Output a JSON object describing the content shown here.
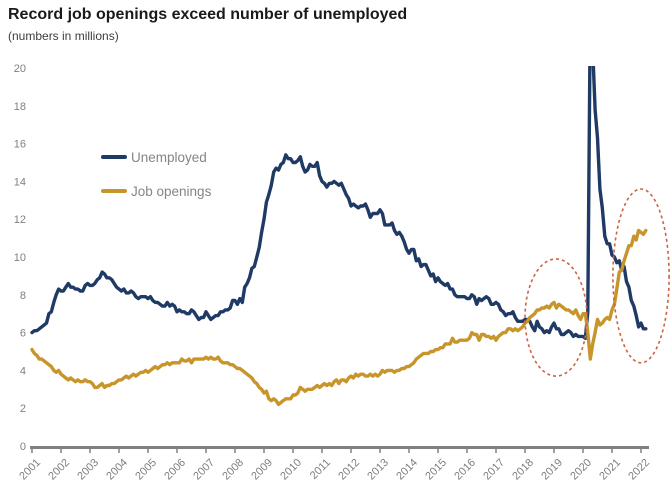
{
  "header": {
    "title": "Record job openings exceed number of unemployed",
    "subtitle": "(numbers in millions)"
  },
  "chart_data": {
    "type": "line",
    "title": "Record job openings exceed number of unemployed",
    "subtitle": "(numbers in millions)",
    "grid": false,
    "legend_position": "upper-left-inside",
    "x_start": 2001,
    "x_interval": "monthly",
    "categories": [
      "2001",
      "2002",
      "2003",
      "2004",
      "2005",
      "2006",
      "2007",
      "2008",
      "2009",
      "2010",
      "2011",
      "2012",
      "2013",
      "2014",
      "2015",
      "2016",
      "2017",
      "2018",
      "2019",
      "2020",
      "2021",
      "2022"
    ],
    "yticks": [
      0,
      2,
      4,
      6,
      8,
      10,
      12,
      14,
      16,
      18,
      20
    ],
    "ylim": [
      0,
      20
    ],
    "axis_color": "#808080",
    "tick_label_color": "#7f7f7f",
    "series": [
      {
        "id": "unemployed",
        "name": "Unemployed",
        "color": "#1f3a64",
        "values": [
          6.0,
          6.1,
          6.1,
          6.2,
          6.3,
          6.4,
          6.5,
          7.0,
          7.1,
          7.6,
          8.0,
          8.3,
          8.2,
          8.2,
          8.4,
          8.6,
          8.4,
          8.4,
          8.3,
          8.3,
          8.2,
          8.2,
          8.5,
          8.6,
          8.5,
          8.5,
          8.6,
          8.8,
          8.9,
          9.2,
          9.1,
          8.9,
          8.9,
          8.8,
          8.6,
          8.4,
          8.3,
          8.2,
          8.3,
          8.1,
          8.1,
          8.2,
          8.1,
          7.9,
          7.8,
          7.9,
          7.9,
          7.9,
          7.8,
          7.9,
          7.7,
          7.6,
          7.6,
          7.5,
          7.4,
          7.4,
          7.6,
          7.4,
          7.5,
          7.4,
          7.1,
          7.2,
          7.1,
          7.1,
          7.0,
          7.0,
          7.2,
          7.1,
          6.9,
          6.7,
          6.8,
          6.8,
          7.1,
          6.9,
          6.7,
          6.8,
          6.9,
          6.9,
          7.1,
          7.1,
          7.2,
          7.2,
          7.3,
          7.7,
          7.7,
          7.5,
          7.8,
          7.6,
          8.4,
          8.6,
          8.9,
          9.4,
          9.5,
          10.0,
          10.5,
          11.3,
          12.0,
          12.9,
          13.3,
          13.8,
          14.5,
          14.7,
          14.6,
          14.9,
          15.0,
          15.4,
          15.2,
          15.2,
          15.0,
          15.0,
          15.1,
          15.3,
          14.8,
          14.5,
          14.6,
          14.9,
          14.8,
          14.8,
          15.0,
          14.3,
          14.0,
          13.9,
          13.7,
          13.9,
          13.9,
          14.0,
          13.9,
          13.8,
          13.9,
          13.6,
          13.3,
          13.1,
          12.7,
          12.8,
          12.7,
          12.6,
          12.7,
          12.7,
          12.8,
          12.5,
          12.1,
          12.3,
          12.3,
          12.3,
          12.5,
          12.3,
          11.7,
          11.7,
          11.7,
          11.8,
          11.4,
          11.2,
          11.3,
          11.1,
          10.8,
          10.4,
          10.2,
          10.4,
          10.4,
          9.8,
          9.9,
          9.5,
          9.6,
          9.6,
          9.3,
          9.0,
          9.1,
          8.7,
          8.9,
          8.7,
          8.6,
          8.5,
          8.6,
          8.3,
          8.3,
          8.0,
          7.9,
          7.9,
          7.9,
          7.9,
          7.8,
          7.8,
          8.0,
          7.9,
          7.5,
          7.8,
          7.7,
          7.8,
          7.9,
          7.8,
          7.5,
          7.5,
          7.6,
          7.5,
          7.2,
          7.1,
          6.9,
          7.0,
          7.0,
          7.1,
          6.8,
          6.6,
          6.6,
          6.6,
          6.7,
          6.7,
          6.6,
          6.3,
          6.1,
          6.6,
          6.3,
          6.2,
          6.0,
          6.1,
          6.0,
          6.3,
          6.5,
          6.2,
          6.2,
          5.9,
          5.9,
          6.0,
          6.1,
          6.0,
          5.8,
          5.9,
          5.8,
          5.8,
          5.8,
          5.7,
          7.1,
          23.1,
          21.0,
          17.8,
          16.3,
          13.6,
          12.6,
          11.1,
          10.7,
          10.7,
          10.1,
          10.0,
          9.7,
          9.8,
          9.3,
          9.5,
          8.7,
          8.4,
          7.7,
          7.4,
          6.9,
          6.3,
          6.5,
          6.2,
          6.2
        ]
      },
      {
        "id": "job-openings",
        "name": "Job openings",
        "color": "#c7952a",
        "values": [
          5.1,
          4.9,
          4.8,
          4.6,
          4.6,
          4.5,
          4.4,
          4.3,
          4.2,
          4.0,
          3.9,
          4.0,
          3.8,
          3.7,
          3.6,
          3.5,
          3.6,
          3.5,
          3.4,
          3.5,
          3.4,
          3.4,
          3.5,
          3.4,
          3.4,
          3.3,
          3.1,
          3.1,
          3.2,
          3.3,
          3.1,
          3.2,
          3.2,
          3.3,
          3.3,
          3.4,
          3.5,
          3.5,
          3.6,
          3.7,
          3.6,
          3.7,
          3.8,
          3.7,
          3.8,
          3.9,
          3.9,
          4.0,
          3.9,
          4.0,
          4.1,
          4.2,
          4.1,
          4.2,
          4.3,
          4.3,
          4.4,
          4.3,
          4.4,
          4.4,
          4.4,
          4.4,
          4.6,
          4.5,
          4.5,
          4.6,
          4.4,
          4.6,
          4.6,
          4.6,
          4.6,
          4.6,
          4.7,
          4.6,
          4.7,
          4.6,
          4.6,
          4.7,
          4.5,
          4.4,
          4.4,
          4.4,
          4.3,
          4.3,
          4.2,
          4.1,
          4.1,
          4.0,
          3.9,
          3.8,
          3.7,
          3.6,
          3.4,
          3.3,
          3.1,
          3.0,
          2.8,
          2.9,
          2.5,
          2.4,
          2.5,
          2.4,
          2.2,
          2.3,
          2.4,
          2.5,
          2.5,
          2.5,
          2.7,
          2.7,
          2.8,
          3.1,
          3.0,
          2.9,
          3.0,
          3.0,
          3.0,
          3.1,
          3.2,
          3.1,
          3.2,
          3.3,
          3.2,
          3.3,
          3.2,
          3.4,
          3.5,
          3.3,
          3.5,
          3.5,
          3.4,
          3.6,
          3.7,
          3.6,
          3.8,
          3.7,
          3.8,
          3.8,
          3.7,
          3.7,
          3.8,
          3.7,
          3.8,
          3.7,
          3.8,
          4.0,
          3.9,
          4.0,
          4.0,
          4.0,
          3.9,
          4.0,
          4.0,
          4.1,
          4.1,
          4.2,
          4.2,
          4.3,
          4.4,
          4.6,
          4.7,
          4.8,
          4.9,
          4.9,
          4.9,
          5.0,
          5.0,
          5.1,
          5.1,
          5.2,
          5.2,
          5.4,
          5.4,
          5.4,
          5.7,
          5.5,
          5.5,
          5.6,
          5.6,
          5.6,
          5.6,
          5.7,
          6.0,
          5.9,
          5.9,
          5.6,
          5.9,
          5.9,
          5.8,
          5.8,
          5.7,
          5.8,
          5.6,
          5.8,
          5.9,
          6.0,
          6.0,
          6.2,
          6.2,
          6.1,
          6.2,
          6.1,
          6.2,
          6.3,
          6.5,
          6.6,
          6.8,
          6.9,
          7.0,
          7.2,
          7.2,
          7.3,
          7.3,
          7.4,
          7.3,
          7.5,
          7.6,
          7.3,
          7.5,
          7.4,
          7.3,
          7.2,
          7.2,
          7.1,
          7.0,
          7.2,
          6.9,
          6.7,
          7.0,
          7.0,
          6.0,
          4.6,
          5.4,
          6.0,
          6.7,
          6.4,
          6.5,
          6.7,
          6.8,
          6.7,
          7.2,
          7.5,
          8.3,
          9.2,
          9.3,
          9.8,
          10.2,
          10.6,
          10.6,
          11.1,
          10.9,
          11.4,
          11.3,
          11.2,
          11.4
        ]
      }
    ],
    "annotations": [
      {
        "id": "highlight-ellipse-2019",
        "shape": "ellipse",
        "color": "#cd6242",
        "cx_year": 2019.07,
        "cy_value": 6.8,
        "rx_years": 1.07,
        "ry_units": 3.1
      },
      {
        "id": "highlight-ellipse-2022",
        "shape": "ellipse",
        "color": "#cd6242",
        "cx_year": 2022.0,
        "cy_value": 9.0,
        "rx_years": 0.97,
        "ry_units": 4.6
      }
    ]
  }
}
